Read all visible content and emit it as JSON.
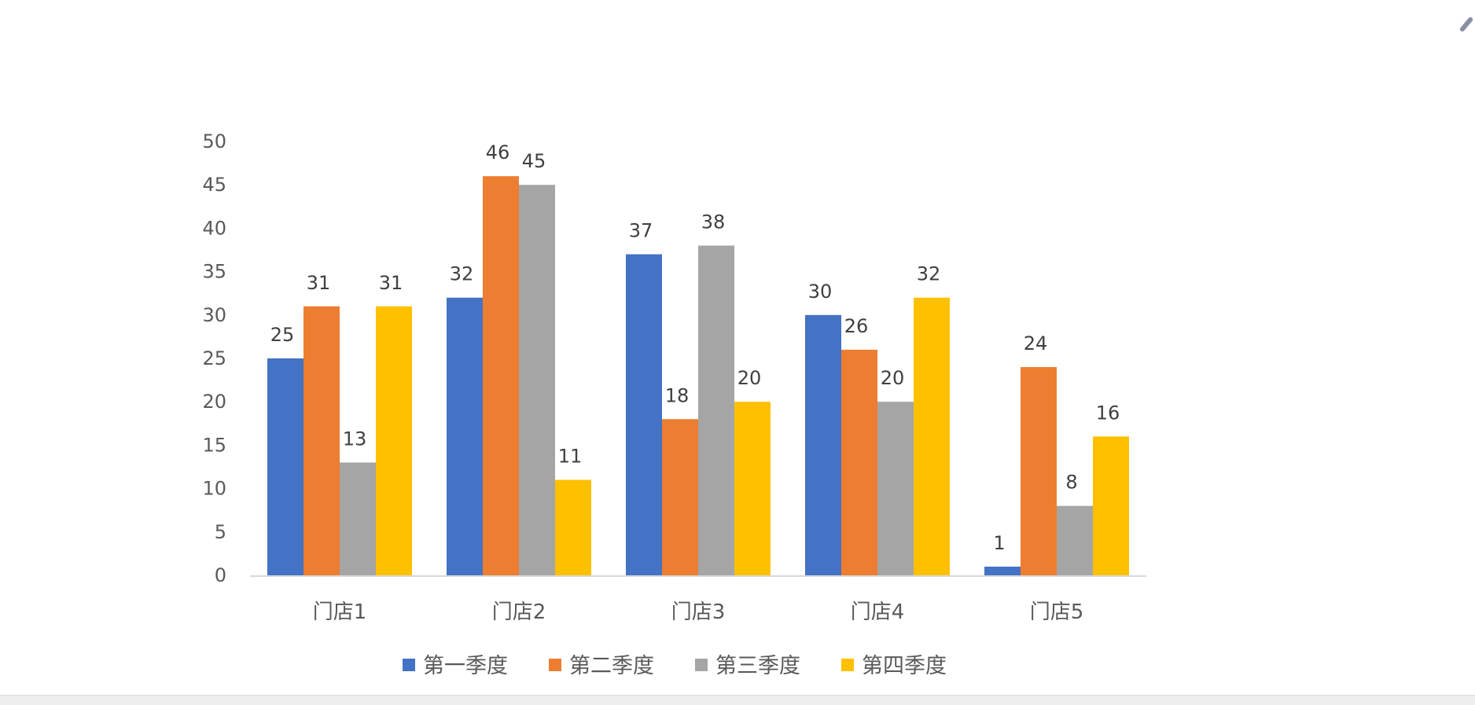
{
  "chart_data": {
    "type": "bar",
    "categories": [
      "门店1",
      "门店2",
      "门店3",
      "门店4",
      "门店5"
    ],
    "series": [
      {
        "name": "第一季度",
        "values": [
          25,
          32,
          37,
          30,
          1
        ],
        "color": "#4472C4"
      },
      {
        "name": "第二季度",
        "values": [
          31,
          46,
          18,
          26,
          24
        ],
        "color": "#ED7D31"
      },
      {
        "name": "第三季度",
        "values": [
          13,
          45,
          38,
          20,
          8
        ],
        "color": "#A5A5A5"
      },
      {
        "name": "第四季度",
        "values": [
          31,
          11,
          20,
          32,
          16
        ],
        "color": "#FFC000"
      }
    ],
    "ylim": [
      0,
      50
    ],
    "yticks": [
      0,
      5,
      10,
      15,
      20,
      25,
      30,
      35,
      40,
      45,
      50
    ],
    "grid": false,
    "data_labels": true,
    "legend": "bottom"
  }
}
